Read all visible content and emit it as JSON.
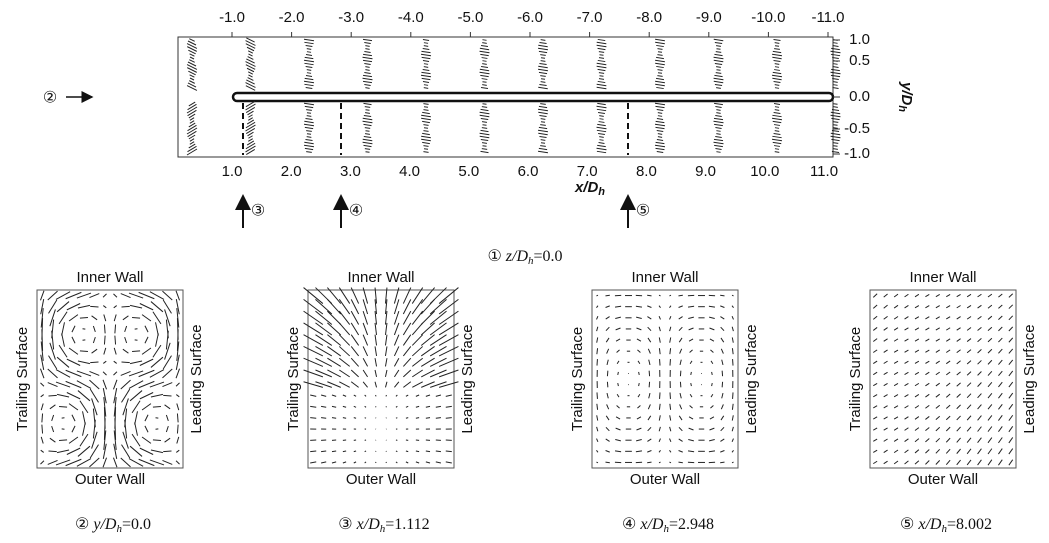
{
  "top_view": {
    "top_ticks": [
      "-1.0",
      "-2.0",
      "-3.0",
      "-4.0",
      "-5.0",
      "-6.0",
      "-7.0",
      "-8.0",
      "-9.0",
      "-10.0",
      "-11.0"
    ],
    "bottom_ticks": [
      "1.0",
      "2.0",
      "3.0",
      "4.0",
      "5.0",
      "6.0",
      "7.0",
      "8.0",
      "9.0",
      "10.0",
      "11.0"
    ],
    "right_ticks": [
      "1.0",
      "0.5",
      "0.0",
      "-0.5",
      "-1.0"
    ],
    "x_axis_label": {
      "text": "x/D",
      "sub": "h"
    },
    "y_axis_label": {
      "text": "y/D",
      "sub": "h"
    },
    "markers": [
      "②",
      "③",
      "④",
      "⑤"
    ],
    "caption": {
      "symbol": "①",
      "text": "z/D",
      "sub": "h",
      "value": "=0.0"
    }
  },
  "panels": [
    {
      "top": "Inner Wall",
      "bottom": "Outer Wall",
      "left": "Trailing Surface",
      "right": "Leading Surface",
      "caption": {
        "symbol": "②",
        "text": "y/D",
        "sub": "h",
        "value": "=0.0"
      }
    },
    {
      "top": "Inner Wall",
      "bottom": "Outer Wall",
      "left": "Trailing Surface",
      "right": "Leading Surface",
      "caption": {
        "symbol": "③",
        "text": "x/D",
        "sub": "h",
        "value": "=1.112"
      }
    },
    {
      "top": "Inner Wall",
      "bottom": "Outer Wall",
      "left": "Trailing Surface",
      "right": "Leading Surface",
      "caption": {
        "symbol": "④",
        "text": "x/D",
        "sub": "h",
        "value": "=2.948"
      }
    },
    {
      "top": "Inner Wall",
      "bottom": "Outer Wall",
      "left": "Trailing Surface",
      "right": "Leading Surface",
      "caption": {
        "symbol": "⑤",
        "text": "x/D",
        "sub": "h",
        "value": "=8.002"
      }
    }
  ]
}
